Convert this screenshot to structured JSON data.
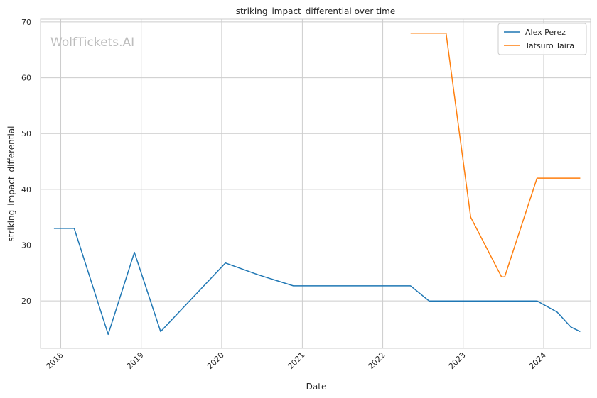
{
  "chart_data": {
    "type": "line",
    "title": "striking_impact_differential over time",
    "xlabel": "Date",
    "ylabel": "striking_impact_differential",
    "x_ticks": [
      "2018",
      "2019",
      "2020",
      "2021",
      "2022",
      "2023",
      "2024"
    ],
    "y_ticks": [
      20,
      30,
      40,
      50,
      60,
      70
    ],
    "xlim": [
      "2017-10-01",
      "2024-08-01"
    ],
    "ylim": [
      11.5,
      70.5
    ],
    "grid": true,
    "legend_position": "top-right",
    "watermark": "WolfTickets.AI",
    "series": [
      {
        "name": "Alex Perez",
        "color": "#1f77b4",
        "points": [
          [
            "2017-12-01",
            33
          ],
          [
            "2018-03-03",
            33
          ],
          [
            "2018-08-04",
            14
          ],
          [
            "2018-12-01",
            28.7
          ],
          [
            "2019-03-30",
            14.5
          ],
          [
            "2020-01-18",
            26.8
          ],
          [
            "2020-06-13",
            24.7
          ],
          [
            "2020-11-21",
            22.7
          ],
          [
            "2022-05-07",
            22.7
          ],
          [
            "2022-07-30",
            20
          ],
          [
            "2023-12-02",
            20
          ],
          [
            "2024-03-02",
            18
          ],
          [
            "2024-05-04",
            15.3
          ],
          [
            "2024-06-15",
            14.5
          ]
        ]
      },
      {
        "name": "Tatsuro Taira",
        "color": "#ff7f0e",
        "points": [
          [
            "2022-05-07",
            68
          ],
          [
            "2022-10-15",
            68
          ],
          [
            "2023-02-04",
            35
          ],
          [
            "2023-06-24",
            24.3
          ],
          [
            "2023-07-08",
            24.3
          ],
          [
            "2023-12-02",
            42
          ],
          [
            "2024-06-15",
            42
          ]
        ]
      }
    ]
  }
}
